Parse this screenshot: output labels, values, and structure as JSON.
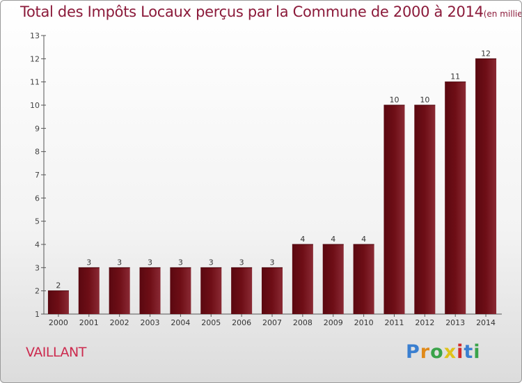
{
  "title": "Total des Impôts Locaux perçus par la Commune de 2000 à 2014",
  "title_unit": "(en milliers d'€)",
  "commune": "VAILLANT",
  "brand": {
    "text": "Proxiti",
    "letter_colors": [
      "#3a7fd0",
      "#e08a1a",
      "#3aa34a",
      "#e0c21a",
      "#d02a2a",
      "#3a7fd0",
      "#3aa34a"
    ]
  },
  "colors": {
    "bar": "#6e0e16",
    "title": "#8b1a3a",
    "commune": "#cc2a4e",
    "axis": "#555555"
  },
  "chart_data": {
    "type": "bar",
    "categories": [
      "2000",
      "2001",
      "2002",
      "2003",
      "2004",
      "2005",
      "2006",
      "2007",
      "2008",
      "2009",
      "2010",
      "2011",
      "2012",
      "2013",
      "2014"
    ],
    "values": [
      2,
      3,
      3,
      3,
      3,
      3,
      3,
      3,
      4,
      4,
      4,
      10,
      10,
      11,
      12
    ],
    "data_labels": [
      "2",
      "3",
      "3",
      "3",
      "3",
      "3",
      "3",
      "3",
      "4",
      "4",
      "4",
      "10",
      "10",
      "11",
      "12"
    ],
    "ylim": [
      1,
      13
    ],
    "yticks": [
      1,
      2,
      3,
      4,
      5,
      6,
      7,
      8,
      9,
      10,
      11,
      12,
      13
    ],
    "ytick_labels": [
      "1",
      "2",
      "3",
      "4",
      "5",
      "6",
      "7",
      "8",
      "9",
      "10",
      "11",
      "12",
      "13"
    ],
    "xlabel": "",
    "ylabel": "",
    "grid": false,
    "legend": "none"
  }
}
